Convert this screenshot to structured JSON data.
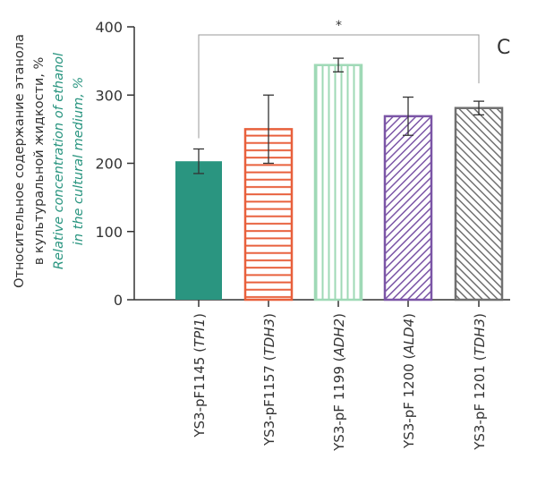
{
  "chart_data": {
    "type": "bar",
    "panel_label": "C",
    "ylabel_ru": [
      "Относительное содержание этанола",
      "в культуральной жидкости, %"
    ],
    "ylabel_en": [
      "Relative concentration of ethanol",
      "in the cultural medium, %"
    ],
    "ylim": [
      0,
      400
    ],
    "yticks": [
      "0",
      "100",
      "200",
      "300",
      "400"
    ],
    "categories": [
      {
        "strain": "YS3-pF1145 ",
        "gene": "TPI1"
      },
      {
        "strain": "YS3-pF1157 ",
        "gene": "TDH3"
      },
      {
        "strain": "YS3-pF 1199 ",
        "gene": "ADH2"
      },
      {
        "strain": "YS3-pF 1200 ",
        "gene": "ALD4"
      },
      {
        "strain": "YS3-pF 1201 ",
        "gene": "TDH3"
      }
    ],
    "values": [
      203,
      250,
      344,
      269,
      281
    ],
    "errors": [
      18,
      50,
      10,
      28,
      10
    ],
    "colors": [
      "#2a9580",
      "#e8603c",
      "#9fd9b6",
      "#7b55a6",
      "#707070"
    ],
    "patterns": [
      "solid",
      "horizontal",
      "vertical",
      "diagonal",
      "diagonal"
    ],
    "significance": {
      "from": 0,
      "to": 4,
      "label": "*"
    }
  }
}
